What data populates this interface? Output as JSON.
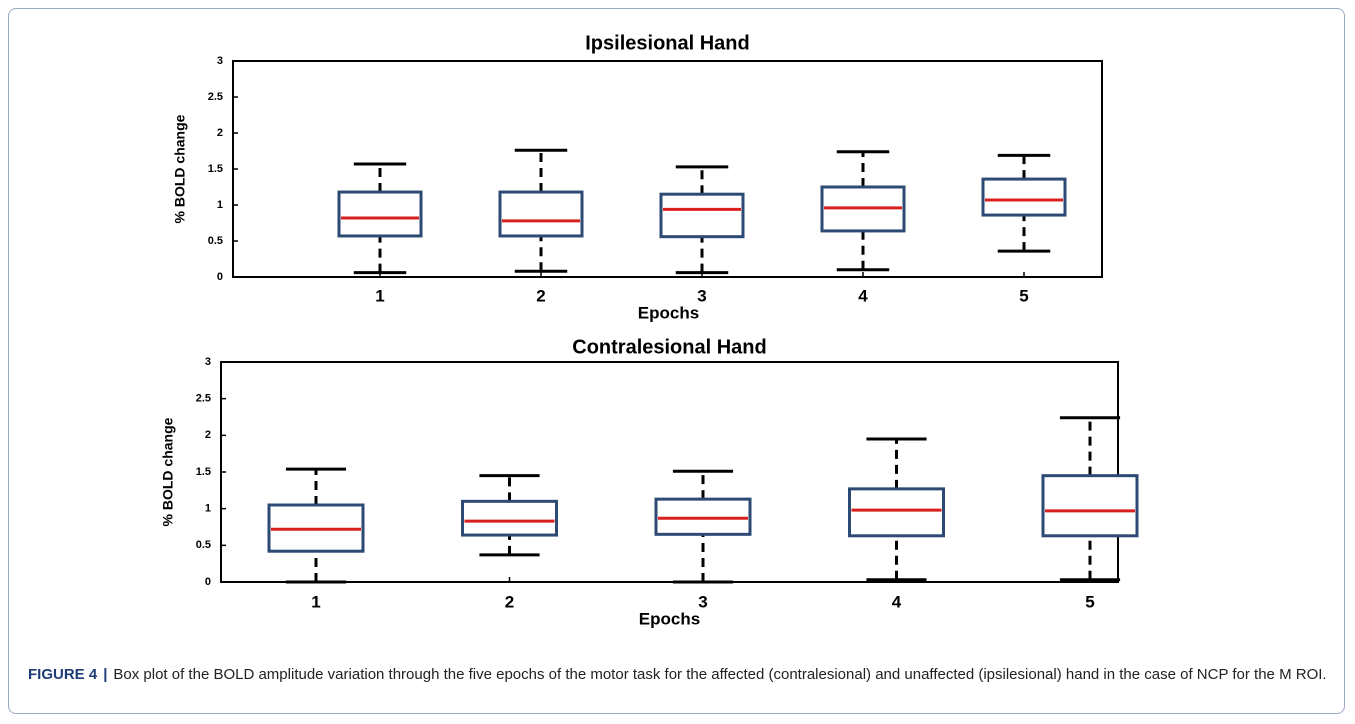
{
  "chart_data": [
    {
      "type": "box",
      "title": "Ipsilesional Hand",
      "xlabel": "Epochs",
      "ylabel": "% BOLD change",
      "categories": [
        "1",
        "2",
        "3",
        "4",
        "5"
      ],
      "boxes": [
        {
          "min": 0.06,
          "q1": 0.57,
          "median": 0.82,
          "q3": 1.18,
          "max": 1.57
        },
        {
          "min": 0.08,
          "q1": 0.57,
          "median": 0.78,
          "q3": 1.18,
          "max": 1.76
        },
        {
          "min": 0.06,
          "q1": 0.56,
          "median": 0.94,
          "q3": 1.15,
          "max": 1.53
        },
        {
          "min": 0.1,
          "q1": 0.64,
          "median": 0.96,
          "q3": 1.25,
          "max": 1.74
        },
        {
          "min": 0.36,
          "q1": 0.86,
          "median": 1.07,
          "q3": 1.36,
          "max": 1.69
        }
      ],
      "ylim": [
        0,
        3
      ],
      "yticks": [
        0,
        0.5,
        1,
        1.5,
        2,
        2.5,
        3
      ],
      "box_color": "#2c4a74",
      "median_color": "#d9201f",
      "whisker_color": "#000000"
    },
    {
      "type": "box",
      "title": "Contralesional Hand",
      "xlabel": "Epochs",
      "ylabel": "% BOLD change",
      "categories": [
        "1",
        "2",
        "3",
        "4",
        "5"
      ],
      "boxes": [
        {
          "min": 0,
          "q1": 0.42,
          "median": 0.72,
          "q3": 1.05,
          "max": 1.54
        },
        {
          "min": 0.37,
          "q1": 0.64,
          "median": 0.83,
          "q3": 1.1,
          "max": 1.45
        },
        {
          "min": 0,
          "q1": 0.65,
          "median": 0.87,
          "q3": 1.13,
          "max": 1.51
        },
        {
          "min": 0.03,
          "q1": 0.63,
          "median": 0.98,
          "q3": 1.27,
          "max": 1.95
        },
        {
          "min": 0.03,
          "q1": 0.63,
          "median": 0.97,
          "q3": 1.45,
          "max": 2.24
        }
      ],
      "ylim": [
        0,
        3
      ],
      "yticks": [
        0,
        0.5,
        1,
        1.5,
        2,
        2.5,
        3
      ],
      "box_color": "#2c4a74",
      "median_color": "#d9201f",
      "whisker_color": "#000000"
    }
  ],
  "caption": {
    "label": "FIGURE 4",
    "separator": "|",
    "text": "Box plot of the BOLD amplitude variation through the five epochs of the motor task for the affected (contralesional) and unaffected (ipsilesional) hand in the case of NCP for the M ROI."
  }
}
